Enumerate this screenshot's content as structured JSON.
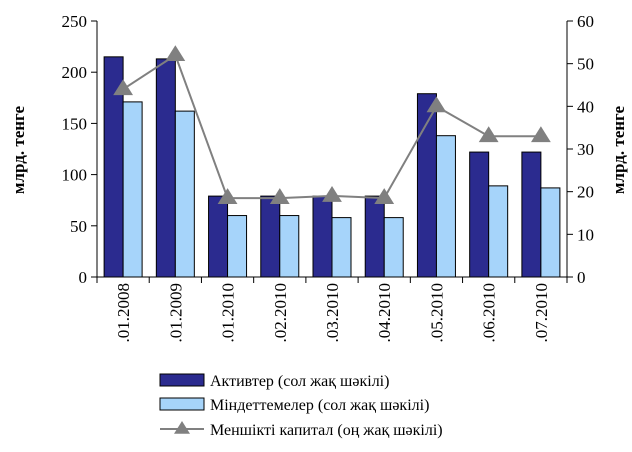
{
  "chart_data": {
    "type": "bar",
    "categories": [
      ".01.2008",
      ".01.2009",
      ".01.2010",
      ".02.2010",
      ".03.2010",
      ".04.2010",
      ".05.2010",
      ".06.2010",
      ".07.2010"
    ],
    "series": [
      {
        "name": "Активтер (сол жақ шәкілі)",
        "type": "bar",
        "axis": "left",
        "color": "#2b2b8f",
        "values": [
          215,
          213,
          79,
          79,
          79,
          79,
          179,
          122,
          122
        ]
      },
      {
        "name": "Міндеттемелер (сол жақ шәкілі)",
        "type": "bar",
        "axis": "left",
        "color": "#a6d4fa",
        "values": [
          171,
          162,
          60,
          60,
          58,
          58,
          138,
          89,
          87
        ]
      },
      {
        "name": "Меншікті капитал (оң жақ шәкілі)",
        "type": "line",
        "axis": "right",
        "color": "#808080",
        "values": [
          44,
          52,
          18.5,
          18.5,
          19,
          18.5,
          40,
          33,
          33
        ]
      }
    ],
    "ylabel": "млрд. тенге",
    "ylabel_right": "млрд. тенге",
    "ylim": [
      0,
      250
    ],
    "yticks": [
      0,
      50,
      100,
      150,
      200,
      250
    ],
    "ylim_right": [
      0,
      60
    ],
    "yticks_right": [
      0,
      10,
      20,
      30,
      40,
      50,
      60
    ],
    "grid": false,
    "legend_position": "bottom"
  }
}
